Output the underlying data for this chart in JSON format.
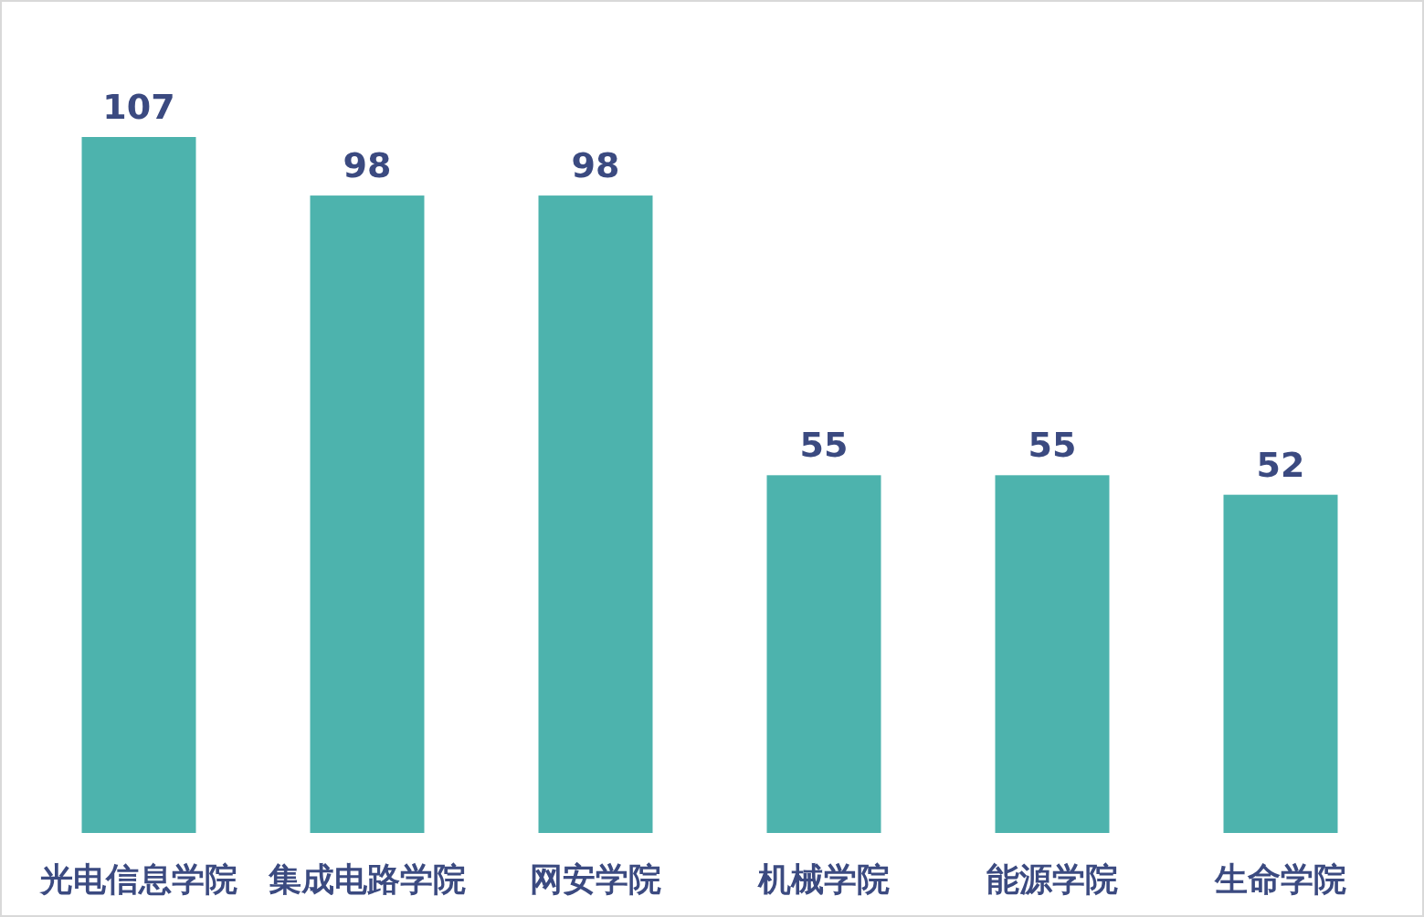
{
  "chart_data": {
    "type": "bar",
    "categories": [
      "光电信息学院",
      "集成电路学院",
      "网安学院",
      "机械学院",
      "能源学院",
      "生命学院"
    ],
    "values": [
      107,
      98,
      98,
      55,
      55,
      52
    ],
    "color": "#4db3ad",
    "data_labels": true
  }
}
